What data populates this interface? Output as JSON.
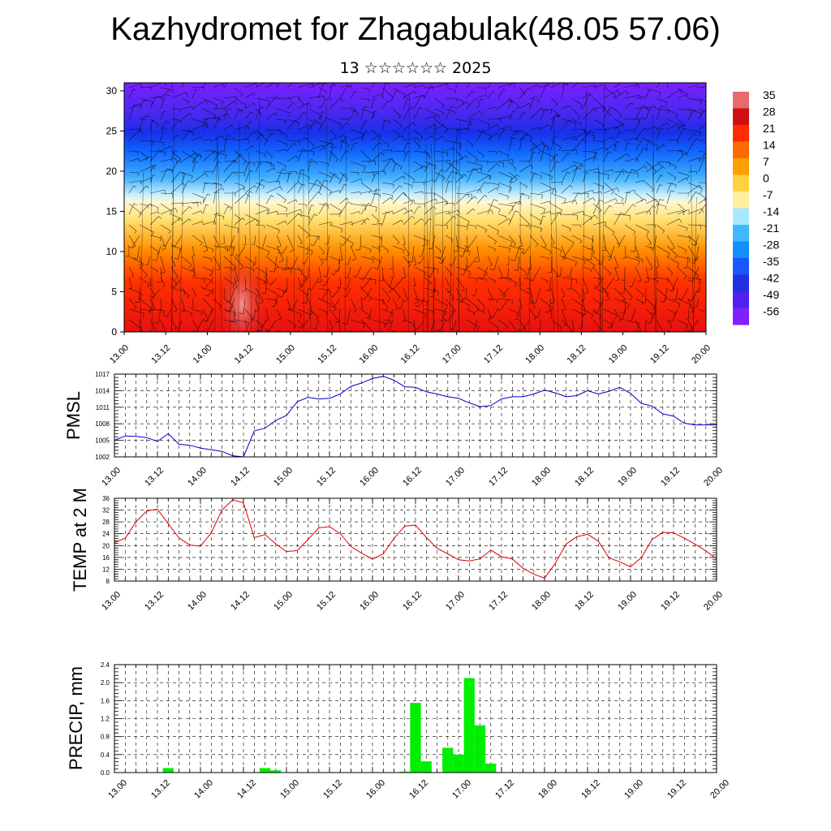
{
  "header": {
    "title": "Kazhydromet for Zhagabulak(48.05 57.06)",
    "subtitle": "13 ☆☆☆☆☆☆ 2025"
  },
  "time_labels": [
    "13.00",
    "13.12",
    "14.00",
    "14.12",
    "15.00",
    "15.12",
    "16.00",
    "16.12",
    "17.00",
    "17.12",
    "18.00",
    "18.12",
    "19.00",
    "19.12",
    "20.00"
  ],
  "chart_data": [
    {
      "type": "heatmap",
      "name": "vertical-cross-section",
      "x_labels": [
        "13.00",
        "13.12",
        "14.00",
        "14.12",
        "15.00",
        "15.12",
        "16.00",
        "16.12",
        "17.00",
        "17.12",
        "18.00",
        "18.12",
        "19.00",
        "19.12",
        "20.00"
      ],
      "y_ticks": [
        0,
        5,
        10,
        15,
        20,
        25,
        30
      ],
      "ylim": [
        0,
        31
      ],
      "colorbar": {
        "labels": [
          "35",
          "28",
          "21",
          "14",
          "7",
          "0",
          "-7",
          "-14",
          "-21",
          "-28",
          "-35",
          "-42",
          "-49",
          "-56"
        ],
        "colors": [
          "#e86a6a",
          "#d01010",
          "#ff2a00",
          "#ff6a00",
          "#ffa000",
          "#ffd040",
          "#fff0a0",
          "#a8e8ff",
          "#40b8ff",
          "#1090ff",
          "#1858ff",
          "#2030e0",
          "#5020f0",
          "#8020ff"
        ]
      },
      "overlay": "wind barbs / streamlines (black)"
    },
    {
      "type": "line",
      "name": "PMSL",
      "ylabel": "PMSL",
      "color": "#0000cc",
      "yticks": [
        1002,
        1005,
        1008,
        1011,
        1014,
        1017
      ],
      "ylim": [
        1002,
        1017
      ],
      "x": [
        0,
        3,
        6,
        9,
        12,
        15,
        18,
        21,
        24,
        27,
        30,
        33,
        36,
        39,
        42,
        45,
        48,
        51,
        54,
        57,
        60,
        63,
        66,
        69,
        72,
        75,
        78,
        81,
        84,
        87,
        90,
        93,
        96,
        99,
        102,
        105,
        108,
        111,
        114,
        117,
        120,
        123,
        126,
        129,
        132,
        135,
        138,
        141,
        144,
        147,
        150,
        153,
        156,
        159,
        162,
        165,
        168
      ],
      "y": [
        1005.0,
        1005.8,
        1005.7,
        1005.5,
        1004.8,
        1006.2,
        1004.3,
        1004.1,
        1003.6,
        1003.3,
        1003.0,
        1002.2,
        1002.0,
        1006.7,
        1007.2,
        1008.6,
        1009.5,
        1012.0,
        1012.8,
        1012.5,
        1012.6,
        1013.4,
        1014.8,
        1015.4,
        1016.2,
        1016.6,
        1015.9,
        1014.7,
        1014.6,
        1013.8,
        1013.4,
        1012.9,
        1012.6,
        1011.8,
        1011.1,
        1011.3,
        1012.5,
        1012.9,
        1012.9,
        1013.4,
        1014.1,
        1013.6,
        1012.9,
        1013.1,
        1014.0,
        1013.4,
        1013.9,
        1014.6,
        1013.5,
        1011.7,
        1011.2,
        1009.8,
        1009.4,
        1008.1,
        1007.8,
        1007.8,
        1007.8
      ]
    },
    {
      "type": "line",
      "name": "TEMP at 2 M",
      "ylabel": "TEMP at 2 M",
      "color": "#dd0000",
      "yticks": [
        8,
        12,
        16,
        20,
        24,
        28,
        32,
        36
      ],
      "ylim": [
        8,
        36
      ],
      "x": [
        0,
        3,
        6,
        9,
        12,
        15,
        18,
        21,
        24,
        27,
        30,
        33,
        36,
        39,
        42,
        45,
        48,
        51,
        54,
        57,
        60,
        63,
        66,
        69,
        72,
        75,
        78,
        81,
        84,
        87,
        90,
        93,
        96,
        99,
        102,
        105,
        108,
        111,
        114,
        117,
        120,
        123,
        126,
        129,
        132,
        135,
        138,
        141,
        144,
        147,
        150,
        153,
        156,
        159,
        162,
        165,
        168
      ],
      "y": [
        21.0,
        22.5,
        28.0,
        31.7,
        32.3,
        27.4,
        22.6,
        20.2,
        19.8,
        24.3,
        32.0,
        35.5,
        34.5,
        22.7,
        23.7,
        20.6,
        18.0,
        18.3,
        22.0,
        26.0,
        26.4,
        24.0,
        19.7,
        17.4,
        15.4,
        17.2,
        22.4,
        26.6,
        26.9,
        22.8,
        19.1,
        17.2,
        15.2,
        14.8,
        15.5,
        18.5,
        16.2,
        15.5,
        12.3,
        10.3,
        9.0,
        14.0,
        20.5,
        23.0,
        23.8,
        21.5,
        15.8,
        14.5,
        12.8,
        16.0,
        22.0,
        24.5,
        24.3,
        22.5,
        20.5,
        18.2,
        15.5
      ]
    },
    {
      "type": "bar",
      "name": "PRECIP, mm",
      "ylabel": "PRECIP, mm",
      "color": "#00ee00",
      "yticks": [
        0.0,
        0.4,
        0.8,
        1.2,
        1.6,
        2.0,
        2.4
      ],
      "ylim": [
        0,
        2.4
      ],
      "x": [
        15,
        42,
        45,
        81,
        84,
        87,
        93,
        96,
        99,
        102,
        105
      ],
      "values": [
        0.1,
        0.1,
        0.05,
        0.02,
        1.55,
        0.25,
        0.55,
        0.4,
        2.1,
        1.05,
        0.2
      ]
    }
  ]
}
